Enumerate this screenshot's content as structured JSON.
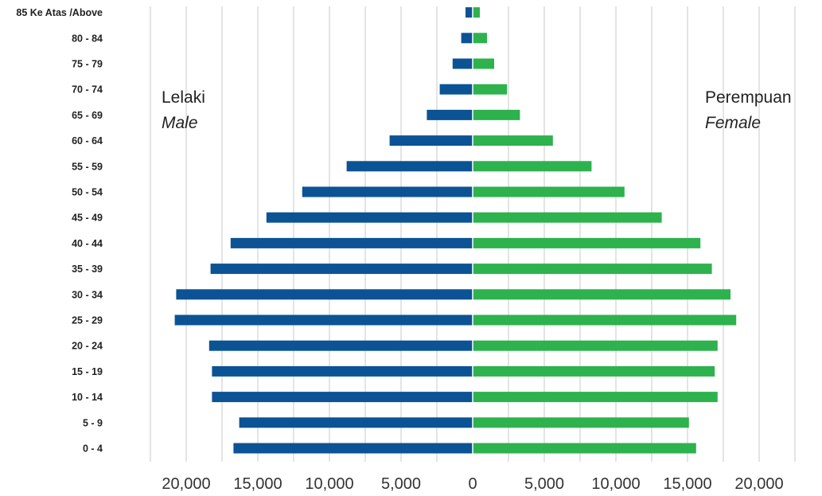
{
  "chart_data": {
    "type": "bar",
    "categories": [
      "0 - 4",
      "5 - 9",
      "10 - 14",
      "15 - 19",
      "20 - 24",
      "25 - 29",
      "30 - 34",
      "35 - 39",
      "40 - 44",
      "45 - 49",
      "50 - 54",
      "55 - 59",
      "60 - 64",
      "65 - 69",
      "70 - 74",
      "75 - 79",
      "80 - 84",
      "85 Ke Atas /Above"
    ],
    "series": [
      {
        "name": "Lelaki Male",
        "color": "#0B5394",
        "values": [
          16700,
          16300,
          18200,
          18200,
          18400,
          20800,
          20700,
          18300,
          16900,
          14400,
          11900,
          8800,
          5800,
          3200,
          2300,
          1400,
          800,
          500
        ]
      },
      {
        "name": "Perempuan Female",
        "color": "#2DB24E",
        "values": [
          15600,
          15100,
          17100,
          16900,
          17100,
          18400,
          18000,
          16700,
          15900,
          13200,
          10600,
          8300,
          5600,
          3300,
          2400,
          1500,
          1000,
          500
        ]
      }
    ],
    "xlim": [
      -22500,
      22500
    ],
    "xticks": [
      -20000,
      -15000,
      -10000,
      -5000,
      0,
      5000,
      10000,
      15000,
      20000
    ],
    "xtick_labels": [
      "20,000",
      "15,000",
      "10,000",
      "5,000",
      "0",
      "5,000",
      "10,000",
      "15,000",
      "20,000"
    ],
    "grid": true,
    "annotations": {
      "left_title": "Lelaki",
      "left_subtitle": "Male",
      "right_title": "Perempuan",
      "right_subtitle": "Female"
    }
  }
}
